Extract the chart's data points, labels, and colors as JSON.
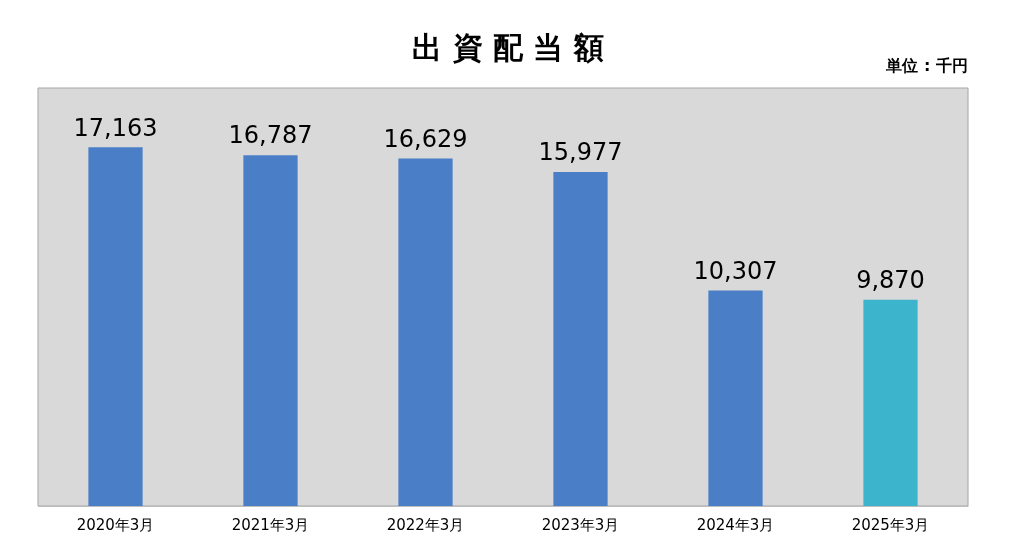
{
  "chart_data": {
    "type": "bar",
    "title": "出 資 配 当 額",
    "annotations": [
      "単位 : 千円"
    ],
    "categories": [
      "2020年3月",
      "2021年3月",
      "2022年3月",
      "2023年3月",
      "2024年3月",
      "2025年3月"
    ],
    "values": [
      17163,
      16787,
      16629,
      15977,
      10307,
      9870
    ],
    "colors": [
      "#4a7fc8",
      "#4a7fc8",
      "#4a7fc8",
      "#4a7fc8",
      "#4a7fc8",
      "#3cb4cc"
    ],
    "value_labels": [
      "17,163",
      "16,787",
      "16,629",
      "15,977",
      "10,307",
      "9,870"
    ],
    "grid": false,
    "legend": false
  }
}
